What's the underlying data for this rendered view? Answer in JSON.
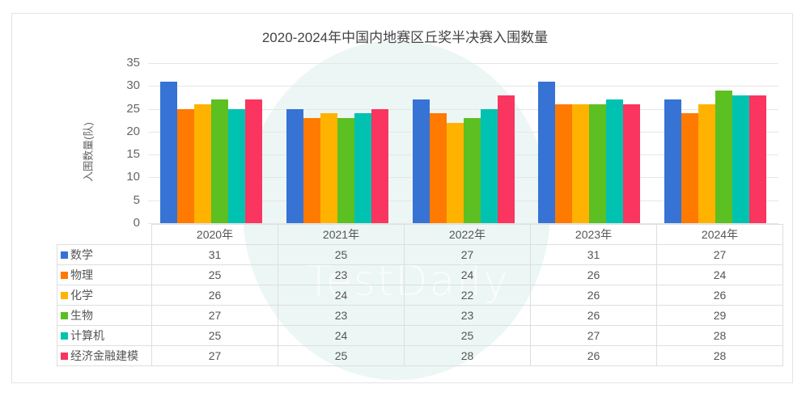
{
  "chart_data": {
    "type": "bar",
    "title": "2020-2024年中国内地赛区丘奖半决赛入围数量",
    "xlabel": "",
    "ylabel": "入围数量(队)",
    "ylim": [
      0,
      35
    ],
    "yticks": [
      0,
      5,
      10,
      15,
      20,
      25,
      30,
      35
    ],
    "grid": true,
    "legend_position": "data-table-below",
    "categories": [
      "2020年",
      "2021年",
      "2022年",
      "2023年",
      "2024年"
    ],
    "series": [
      {
        "name": "数学",
        "color": "#3673d4",
        "values": [
          31,
          25,
          27,
          31,
          27
        ]
      },
      {
        "name": "物理",
        "color": "#ff7a00",
        "values": [
          25,
          23,
          24,
          26,
          24
        ]
      },
      {
        "name": "化学",
        "color": "#ffb300",
        "values": [
          26,
          24,
          22,
          26,
          26
        ]
      },
      {
        "name": "生物",
        "color": "#5cbf22",
        "values": [
          27,
          23,
          23,
          26,
          29
        ]
      },
      {
        "name": "计算机",
        "color": "#00c2b0",
        "values": [
          25,
          24,
          25,
          27,
          28
        ]
      },
      {
        "name": "经济金融建模",
        "color": "#fa3560",
        "values": [
          27,
          25,
          28,
          26,
          28
        ]
      }
    ]
  },
  "watermark": "TestDaily"
}
